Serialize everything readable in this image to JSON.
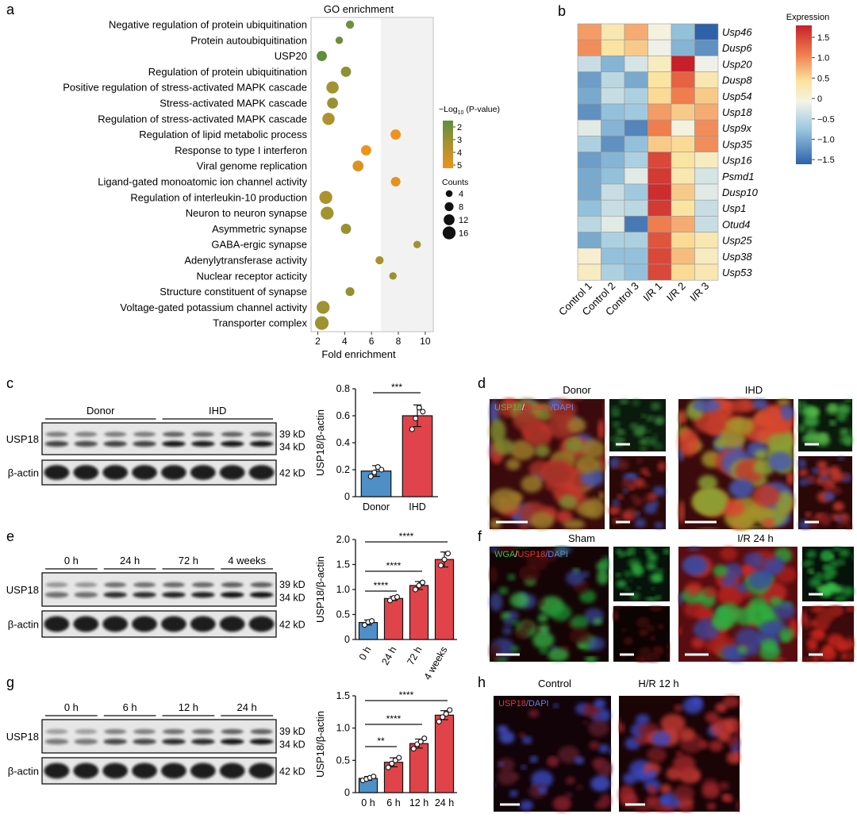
{
  "panel_labels": {
    "a": "a",
    "b": "b",
    "c": "c",
    "d": "d",
    "e": "e",
    "f": "f",
    "g": "g",
    "h": "h"
  },
  "panel_a": {
    "title": "GO enrichment",
    "xlabel": "Fold enrichment",
    "legend_color_title_prefix": "−Log",
    "legend_color_title_sub": "10",
    "legend_color_title_suffix": " (P-value)",
    "legend_color_ticks": [
      "2",
      "3",
      "4",
      "5"
    ],
    "legend_size_title": "Counts",
    "legend_size_ticks": [
      "4",
      "8",
      "12",
      "16"
    ]
  },
  "chart_data": [
    {
      "type": "scatter",
      "title": "GO enrichment",
      "xlabel": "Fold enrichment",
      "xlim": [
        1.5,
        10.6
      ],
      "xticks": [
        2,
        4,
        6,
        8,
        10
      ],
      "terms": [
        {
          "label": "Negative regulation of protein ubiquitination",
          "x": 4.4,
          "neglog_p": 2.3,
          "count": 5
        },
        {
          "label": "Protein autoubiquitination",
          "x": 3.6,
          "neglog_p": 2.2,
          "count": 4
        },
        {
          "label": "USP20",
          "x": 2.3,
          "neglog_p": 2.0,
          "count": 8
        },
        {
          "label": "Regulation of protein ubiquitination",
          "x": 4.1,
          "neglog_p": 2.9,
          "count": 8
        },
        {
          "label": "Positive regulation of stress-activated MAPK cascade",
          "x": 3.1,
          "neglog_p": 3.4,
          "count": 11
        },
        {
          "label": "Stress-activated MAPK cascade",
          "x": 3.1,
          "neglog_p": 3.2,
          "count": 9
        },
        {
          "label": "Regulation of stress-activated MAPK cascade",
          "x": 2.8,
          "neglog_p": 3.6,
          "count": 11
        },
        {
          "label": "Regulation of lipid metabolic process",
          "x": 7.8,
          "neglog_p": 5.2,
          "count": 8
        },
        {
          "label": "Response to type I interferon",
          "x": 5.6,
          "neglog_p": 5.0,
          "count": 8
        },
        {
          "label": "Viral genome replication",
          "x": 5.0,
          "neglog_p": 4.6,
          "count": 9
        },
        {
          "label": "Ligand-gated monoatomic ion channel activity",
          "x": 7.8,
          "neglog_p": 4.8,
          "count": 7
        },
        {
          "label": "Regulation of interleukin-10 production",
          "x": 2.6,
          "neglog_p": 3.6,
          "count": 12
        },
        {
          "label": "Neuron to neuron synapse",
          "x": 2.7,
          "neglog_p": 3.4,
          "count": 12
        },
        {
          "label": "Asymmetric synapse",
          "x": 4.1,
          "neglog_p": 3.2,
          "count": 8
        },
        {
          "label": "GABA-ergic synapse",
          "x": 9.4,
          "neglog_p": 3.3,
          "count": 4
        },
        {
          "label": "Adenylytransferase activity",
          "x": 6.6,
          "neglog_p": 3.5,
          "count": 5
        },
        {
          "label": "Nuclear receptor acticity",
          "x": 7.6,
          "neglog_p": 3.2,
          "count": 4
        },
        {
          "label": "Structure constituent of synapse",
          "x": 4.4,
          "neglog_p": 3.1,
          "count": 6
        },
        {
          "label": "Voltage-gated potassium channel activity",
          "x": 2.4,
          "neglog_p": 3.3,
          "count": 12
        },
        {
          "label": "Transporter complex",
          "x": 2.3,
          "neglog_p": 3.3,
          "count": 13
        }
      ]
    },
    {
      "type": "heatmap",
      "legend_title": "Expression",
      "color_ticks": [
        "1.5",
        "1.0",
        "0.5",
        "0",
        "−0.5",
        "−1.0",
        "−1.5"
      ],
      "columns": [
        "Control 1",
        "Control 2",
        "Control 3",
        "I/R 1",
        "I/R 2",
        "I/R 3"
      ],
      "rows": [
        "Usp46",
        "Dusp6",
        "Usp20",
        "Dusp8",
        "Usp54",
        "Usp18",
        "Usp9x",
        "Usp35",
        "Usp16",
        "Psmd1",
        "Dusp10",
        "Usp1",
        "Otud4",
        "Usp25",
        "Usp38",
        "Usp53"
      ],
      "values": [
        [
          0.9,
          0.3,
          0.8,
          0.0,
          -0.8,
          -1.6
        ],
        [
          1.0,
          0.4,
          0.6,
          -0.1,
          -0.9,
          -1.2
        ],
        [
          -0.4,
          -0.9,
          -0.3,
          0.2,
          1.8,
          -0.1
        ],
        [
          -1.1,
          -0.5,
          -1.0,
          0.4,
          1.3,
          0.3
        ],
        [
          -1.0,
          -0.4,
          -0.6,
          0.5,
          1.1,
          0.6
        ],
        [
          -1.2,
          -0.8,
          -0.7,
          0.9,
          0.6,
          0.8
        ],
        [
          -0.2,
          -0.9,
          -1.3,
          1.1,
          0.0,
          1.0
        ],
        [
          -0.6,
          -1.2,
          -0.8,
          0.6,
          0.5,
          1.0
        ],
        [
          -1.1,
          -0.9,
          -0.6,
          1.5,
          0.4,
          0.2
        ],
        [
          -1.0,
          -0.8,
          -0.2,
          1.6,
          0.3,
          -0.3
        ],
        [
          -1.0,
          -0.4,
          -0.7,
          1.7,
          0.6,
          -0.2
        ],
        [
          -0.8,
          -0.4,
          -0.5,
          1.6,
          0.4,
          -0.4
        ],
        [
          -0.5,
          -0.2,
          -1.4,
          1.1,
          0.8,
          -0.4
        ],
        [
          -1.0,
          -0.6,
          -0.6,
          1.4,
          0.5,
          0.3
        ],
        [
          0.1,
          -0.8,
          -0.8,
          1.5,
          0.7,
          0.2
        ],
        [
          0.2,
          -0.6,
          -0.8,
          1.5,
          0.5,
          0.3
        ]
      ]
    },
    {
      "type": "bar",
      "ylabel": "USP18/β-actin",
      "categories": [
        "Donor",
        "IHD"
      ],
      "values": [
        0.19,
        0.6
      ],
      "errors": [
        0.04,
        0.08
      ],
      "points": [
        [
          0.15,
          0.18,
          0.22,
          0.2
        ],
        [
          0.5,
          0.58,
          0.66,
          0.63
        ]
      ],
      "ylim": [
        0,
        0.8
      ],
      "yticks": [
        "0",
        "0.2",
        "0.4",
        "0.6",
        "0.8"
      ],
      "significance": [
        {
          "from": 0,
          "to": 1,
          "label": "***"
        }
      ]
    },
    {
      "type": "bar",
      "ylabel": "USP18/β-actin",
      "categories": [
        "0 h",
        "24 h",
        "72 h",
        "4 weeks"
      ],
      "values": [
        0.34,
        0.82,
        1.08,
        1.6
      ],
      "errors": [
        0.05,
        0.04,
        0.08,
        0.15
      ],
      "points": [
        [
          0.29,
          0.35,
          0.37
        ],
        [
          0.78,
          0.83,
          0.85
        ],
        [
          1.0,
          1.08,
          1.14
        ],
        [
          1.48,
          1.6,
          1.72
        ]
      ],
      "ylim": [
        0,
        2.0
      ],
      "yticks": [
        "0",
        "0.5",
        "1.0",
        "1.5",
        "2.0"
      ],
      "significance": [
        {
          "from": 0,
          "to": 1,
          "label": "****"
        },
        {
          "from": 0,
          "to": 2,
          "label": "****"
        },
        {
          "from": 0,
          "to": 3,
          "label": "****"
        }
      ]
    },
    {
      "type": "bar",
      "ylabel": "USP18/β-actin",
      "categories": [
        "0 h",
        "6 h",
        "12 h",
        "24 h"
      ],
      "values": [
        0.22,
        0.47,
        0.76,
        1.2
      ],
      "errors": [
        0.03,
        0.07,
        0.07,
        0.07
      ],
      "points": [
        [
          0.19,
          0.21,
          0.23,
          0.25
        ],
        [
          0.39,
          0.45,
          0.5,
          0.54
        ],
        [
          0.68,
          0.75,
          0.79,
          0.84
        ],
        [
          1.1,
          1.17,
          1.22,
          1.28
        ]
      ],
      "ylim": [
        0,
        1.5
      ],
      "yticks": [
        "0",
        "0.5",
        "1.0",
        "1.5"
      ],
      "significance": [
        {
          "from": 0,
          "to": 1,
          "label": "**"
        },
        {
          "from": 0,
          "to": 2,
          "label": "****"
        },
        {
          "from": 0,
          "to": 3,
          "label": "****"
        }
      ]
    }
  ],
  "panel_c": {
    "groups": [
      "Donor",
      "IHD"
    ],
    "row_labels": [
      "USP18",
      "β-actin"
    ],
    "kd_labels": [
      "39 kD",
      "34 kD",
      "42 kD"
    ]
  },
  "panel_e": {
    "groups": [
      "0 h",
      "24 h",
      "72 h",
      "4 weeks"
    ],
    "row_labels": [
      "USP18",
      "β-actin"
    ],
    "kd_labels": [
      "39 kD",
      "34 kD",
      "42 kD"
    ]
  },
  "panel_g": {
    "groups": [
      "0 h",
      "6 h",
      "12 h",
      "24 h"
    ],
    "row_labels": [
      "USP18",
      "β-actin"
    ],
    "kd_labels": [
      "39 kD",
      "34 kD",
      "42 kD"
    ]
  },
  "panel_d": {
    "titles": [
      "Donor",
      "IHD"
    ],
    "stain_parts": [
      {
        "text": "USP18",
        "color": "#3fbf4a"
      },
      {
        "text": "/",
        "color": "#e8e8e8"
      },
      {
        "text": "α-actin",
        "color": "#e0383a"
      },
      {
        "text": "/DAPI",
        "color": "#6a7fe8"
      }
    ]
  },
  "panel_f": {
    "titles": [
      "Sham",
      "I/R 24 h"
    ],
    "stain_parts": [
      {
        "text": "WGA",
        "color": "#3fbf4a"
      },
      {
        "text": "/",
        "color": "#e8e8e8"
      },
      {
        "text": "USP18",
        "color": "#e0383a"
      },
      {
        "text": "/DAPI",
        "color": "#6a7fe8"
      }
    ]
  },
  "panel_h": {
    "titles": [
      "Control",
      "H/R 12 h"
    ],
    "stain_parts": [
      {
        "text": "USP18",
        "color": "#e0383a"
      },
      {
        "text": "/DAPI",
        "color": "#6a7fe8"
      }
    ]
  },
  "colors": {
    "bar_control": "#4e8fc8",
    "bar_treated": "#e0444a",
    "dot_green": "#5f8f3e",
    "dot_orange": "#e8901f",
    "heat_high": "#c8202a",
    "heat_low": "#2e62a8"
  }
}
